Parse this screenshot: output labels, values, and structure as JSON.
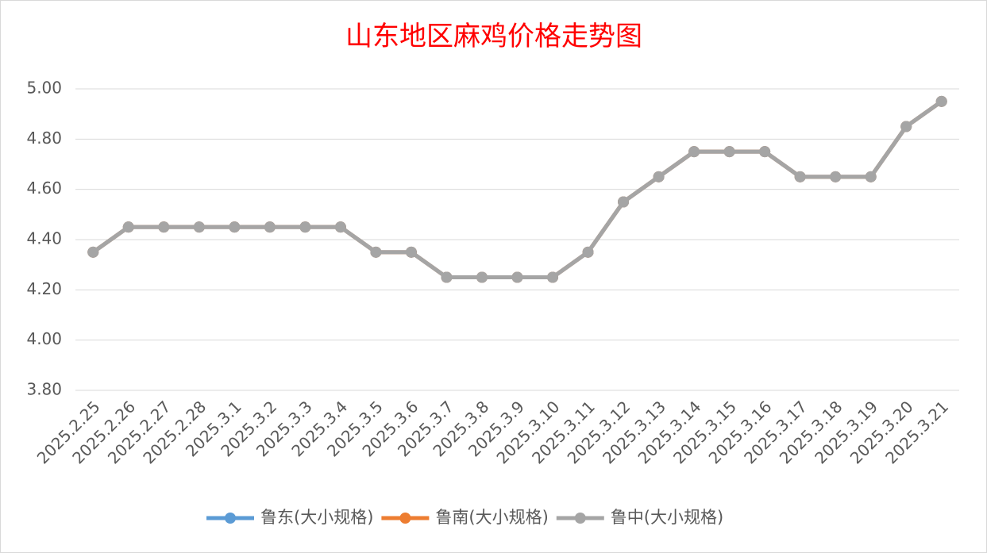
{
  "chart_data": {
    "type": "line",
    "title": "山东地区麻鸡价格走势图",
    "categories": [
      "2025.2.25",
      "2025.2.26",
      "2025.2.27",
      "2025.2.28",
      "2025.3.1",
      "2025.3.2",
      "2025.3.3",
      "2025.3.4",
      "2025.3.5",
      "2025.3.6",
      "2025.3.7",
      "2025.3.8",
      "2025.3.9",
      "2025.3.10",
      "2025.3.11",
      "2025.3.12",
      "2025.3.13",
      "2025.3.14",
      "2025.3.15",
      "2025.3.16",
      "2025.3.17",
      "2025.3.18",
      "2025.3.19",
      "2025.3.20",
      "2025.3.21"
    ],
    "series": [
      {
        "name": "鲁东(大小规格)",
        "color": "#5b9bd5",
        "values": [
          4.35,
          4.45,
          4.45,
          4.45,
          4.45,
          4.45,
          4.45,
          4.45,
          4.35,
          4.35,
          4.25,
          4.25,
          4.25,
          4.25,
          4.35,
          4.55,
          4.65,
          4.75,
          4.75,
          4.75,
          4.65,
          4.65,
          4.65,
          4.85,
          4.95
        ]
      },
      {
        "name": "鲁南(大小规格)",
        "color": "#ed7d31",
        "values": [
          4.35,
          4.45,
          4.45,
          4.45,
          4.45,
          4.45,
          4.45,
          4.45,
          4.35,
          4.35,
          4.25,
          4.25,
          4.25,
          4.25,
          4.35,
          4.55,
          4.65,
          4.75,
          4.75,
          4.75,
          4.65,
          4.65,
          4.65,
          4.85,
          4.95
        ]
      },
      {
        "name": "鲁中(大小规格)",
        "color": "#a5a5a5",
        "values": [
          4.35,
          4.45,
          4.45,
          4.45,
          4.45,
          4.45,
          4.45,
          4.45,
          4.35,
          4.35,
          4.25,
          4.25,
          4.25,
          4.25,
          4.35,
          4.55,
          4.65,
          4.75,
          4.75,
          4.75,
          4.65,
          4.65,
          4.65,
          4.85,
          4.95
        ]
      }
    ],
    "ylim": [
      3.8,
      5.0
    ],
    "yticks": [
      {
        "value": 3.8,
        "label": "3.80"
      },
      {
        "value": 4.0,
        "label": "4.00"
      },
      {
        "value": 4.2,
        "label": "4.20"
      },
      {
        "value": 4.4,
        "label": "4.40"
      },
      {
        "value": 4.6,
        "label": "4.60"
      },
      {
        "value": 4.8,
        "label": "4.80"
      },
      {
        "value": 5.0,
        "label": "5.00"
      }
    ],
    "grid": true,
    "legend": "bottom"
  }
}
